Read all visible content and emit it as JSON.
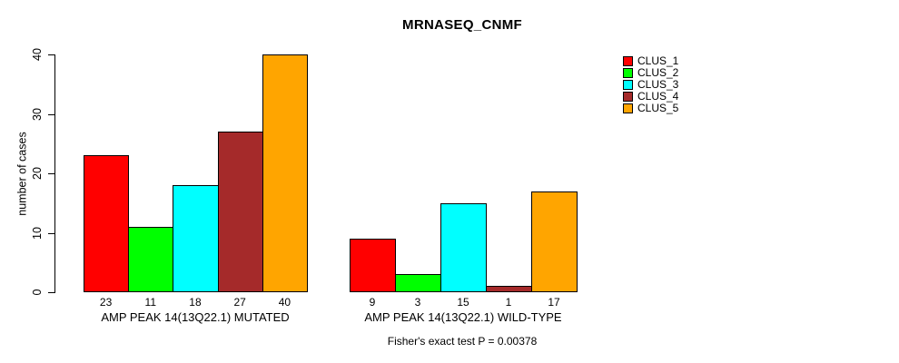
{
  "title": "MRNASEQ_CNMF",
  "chart_data": {
    "type": "bar",
    "title": "MRNASEQ_CNMF",
    "ylabel": "number of cases",
    "xlabel": "",
    "ylim": [
      0,
      40
    ],
    "yticks": [
      0,
      10,
      20,
      30,
      40
    ],
    "grid": false,
    "legend_position": "top-right-outside-plot",
    "categories": [
      "AMP PEAK 14(13Q22.1) MUTATED",
      "AMP PEAK 14(13Q22.1) WILD-TYPE"
    ],
    "series": [
      {
        "name": "CLUS_1",
        "color": "#FF0000",
        "values": [
          23,
          9
        ]
      },
      {
        "name": "CLUS_2",
        "color": "#00FF00",
        "values": [
          11,
          3
        ]
      },
      {
        "name": "CLUS_3",
        "color": "#00FFFF",
        "values": [
          18,
          15
        ]
      },
      {
        "name": "CLUS_4",
        "color": "#A52A2A",
        "values": [
          27,
          1
        ]
      },
      {
        "name": "CLUS_5",
        "color": "#FFA500",
        "values": [
          40,
          17
        ]
      }
    ],
    "bar_value_labels": [
      [
        23,
        11,
        18,
        27,
        40
      ],
      [
        9,
        3,
        15,
        1,
        17
      ]
    ],
    "annotation": "Fisher's exact test P = 0.00378",
    "bar_border_color": "#000000",
    "background_color": "#FFFFFF"
  }
}
